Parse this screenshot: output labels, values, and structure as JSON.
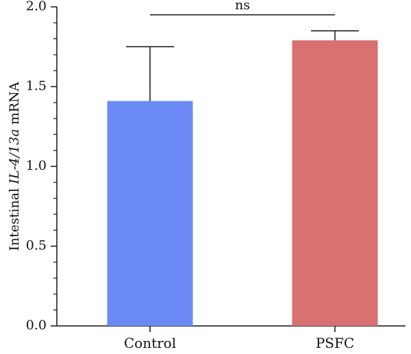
{
  "chart_data": {
    "type": "bar",
    "categories": [
      "Control",
      "PSFC"
    ],
    "values": [
      1.41,
      1.79
    ],
    "errors": [
      0.34,
      0.06
    ],
    "colors": [
      "#6b8af5",
      "#d97071"
    ],
    "ylim": [
      0,
      2.0
    ],
    "yticks": [
      0.0,
      0.5,
      1.0,
      1.5,
      2.0
    ],
    "ytick_labels": [
      "0.0",
      "0.5",
      "1.0",
      "1.5",
      "2.0"
    ],
    "ylabel": {
      "prefix": "Intestinal ",
      "gene": "IL-4/13a",
      "suffix": " mRNA"
    },
    "xlabel": "",
    "minor_ticks": true,
    "grid": false,
    "significance": {
      "label": "ns",
      "between": [
        "Control",
        "PSFC"
      ],
      "y": 1.95
    }
  }
}
